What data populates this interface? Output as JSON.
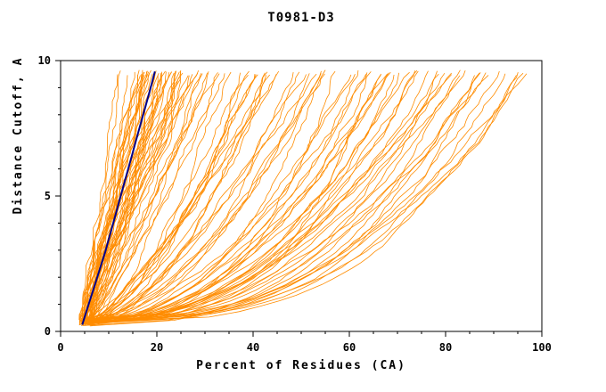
{
  "colors": {
    "models": "#FF8C00",
    "highlight": "#00008B",
    "frame": "#000000",
    "background": "#FFFFFF"
  },
  "chart_data": {
    "type": "line",
    "title": "T0981-D3",
    "xlabel": "Percent of Residues (CA)",
    "ylabel": "Distance Cutoff, A",
    "xlim": [
      0,
      100
    ],
    "ylim": [
      0,
      10
    ],
    "xticks": [
      0,
      20,
      40,
      60,
      80,
      100
    ],
    "yticks": [
      0,
      5,
      10
    ],
    "x_minor_step": 5,
    "y_minor_step": 1,
    "grid": false,
    "legend": "none",
    "x_start_range": [
      3.8,
      6.5
    ],
    "y_bottom": 0.2,
    "y_top": 9.65,
    "noise": 0.9,
    "model_curves": [
      [
        13.5,
        1.0
      ],
      [
        14,
        0.85
      ],
      [
        14.5,
        1.1
      ],
      [
        15,
        0.9
      ],
      [
        15.5,
        1.2
      ],
      [
        16,
        0.8
      ],
      [
        16,
        1.05
      ],
      [
        16.5,
        0.95
      ],
      [
        17,
        1.15
      ],
      [
        17,
        0.85
      ],
      [
        17.5,
        1.0
      ],
      [
        18,
        0.9
      ],
      [
        18,
        1.2
      ],
      [
        18.5,
        0.8
      ],
      [
        18.5,
        1.05
      ],
      [
        19,
        0.95
      ],
      [
        19,
        1.1
      ],
      [
        19.5,
        0.85
      ],
      [
        20,
        1.0
      ],
      [
        20,
        1.25
      ],
      [
        20,
        0.9
      ],
      [
        20.5,
        1.1
      ],
      [
        21,
        0.8
      ],
      [
        21,
        1.0
      ],
      [
        21.5,
        0.92
      ],
      [
        22,
        1.15
      ],
      [
        22,
        0.85
      ],
      [
        22.5,
        1.0
      ],
      [
        23,
        0.9
      ],
      [
        23,
        1.2
      ],
      [
        23.5,
        0.82
      ],
      [
        24,
        1.05
      ],
      [
        24,
        0.95
      ],
      [
        24.5,
        1.1
      ],
      [
        25,
        0.88
      ],
      [
        25,
        1.0
      ],
      [
        25.5,
        1.18
      ],
      [
        26,
        0.85
      ],
      [
        26.5,
        1.0
      ],
      [
        27,
        0.92
      ],
      [
        27.5,
        1.1
      ],
      [
        28,
        0.8
      ],
      [
        28.5,
        0.98
      ],
      [
        29,
        1.12
      ],
      [
        29.5,
        0.86
      ],
      [
        30,
        1.0
      ],
      [
        31,
        0.9
      ],
      [
        32,
        0.75
      ],
      [
        33,
        0.6
      ],
      [
        34,
        0.8
      ],
      [
        35,
        0.55
      ],
      [
        36,
        0.7
      ],
      [
        37,
        0.62
      ],
      [
        38,
        0.78
      ],
      [
        39,
        0.55
      ],
      [
        40,
        0.68
      ],
      [
        41,
        0.6
      ],
      [
        42,
        0.75
      ],
      [
        43,
        0.52
      ],
      [
        44,
        0.65
      ],
      [
        45,
        0.58
      ],
      [
        46,
        0.72
      ],
      [
        47,
        0.55
      ],
      [
        48,
        0.65
      ],
      [
        50,
        0.5
      ],
      [
        51,
        0.62
      ],
      [
        52,
        0.55
      ],
      [
        53,
        0.68
      ],
      [
        54,
        0.52
      ],
      [
        55,
        0.6
      ],
      [
        56,
        0.5
      ],
      [
        58,
        0.42
      ],
      [
        59,
        0.55
      ],
      [
        60,
        0.38
      ],
      [
        61,
        0.5
      ],
      [
        62,
        0.44
      ],
      [
        63,
        0.55
      ],
      [
        64,
        0.4
      ],
      [
        65,
        0.48
      ],
      [
        66,
        0.36
      ],
      [
        67,
        0.52
      ],
      [
        68,
        0.42
      ],
      [
        69,
        0.48
      ],
      [
        70,
        0.38
      ],
      [
        71,
        0.5
      ],
      [
        72,
        0.44
      ],
      [
        73,
        0.36
      ],
      [
        74,
        0.48
      ],
      [
        75,
        0.4
      ],
      [
        76,
        0.52
      ],
      [
        77,
        0.36
      ],
      [
        78,
        0.45
      ],
      [
        79,
        0.5
      ],
      [
        80,
        0.38
      ],
      [
        81,
        0.44
      ],
      [
        82,
        0.35
      ],
      [
        83,
        0.48
      ],
      [
        84,
        0.4
      ],
      [
        85,
        0.33
      ],
      [
        86,
        0.45
      ],
      [
        87,
        0.38
      ],
      [
        88,
        0.42
      ],
      [
        89,
        0.34
      ],
      [
        90,
        0.46
      ],
      [
        91,
        0.38
      ],
      [
        92,
        0.32
      ],
      [
        93,
        0.42
      ],
      [
        94,
        0.36
      ],
      [
        95,
        0.4
      ],
      [
        96.5,
        0.34
      ]
    ],
    "highlight_series": {
      "name": "highlight-model",
      "y": [
        0.25,
        0.7,
        1.15,
        1.6,
        2.05,
        2.5,
        2.95,
        3.4,
        3.85,
        4.3,
        4.75,
        5.2,
        5.65,
        6.1,
        6.55,
        7.0,
        7.45,
        7.9,
        8.35,
        8.8,
        9.25,
        9.6
      ],
      "x": [
        4.5,
        5.3,
        6.1,
        6.9,
        7.7,
        8.5,
        9.3,
        10.0,
        10.7,
        11.4,
        12.1,
        12.8,
        13.5,
        14.2,
        14.9,
        15.6,
        16.3,
        17.0,
        17.7,
        18.4,
        19.1,
        19.6
      ]
    }
  }
}
